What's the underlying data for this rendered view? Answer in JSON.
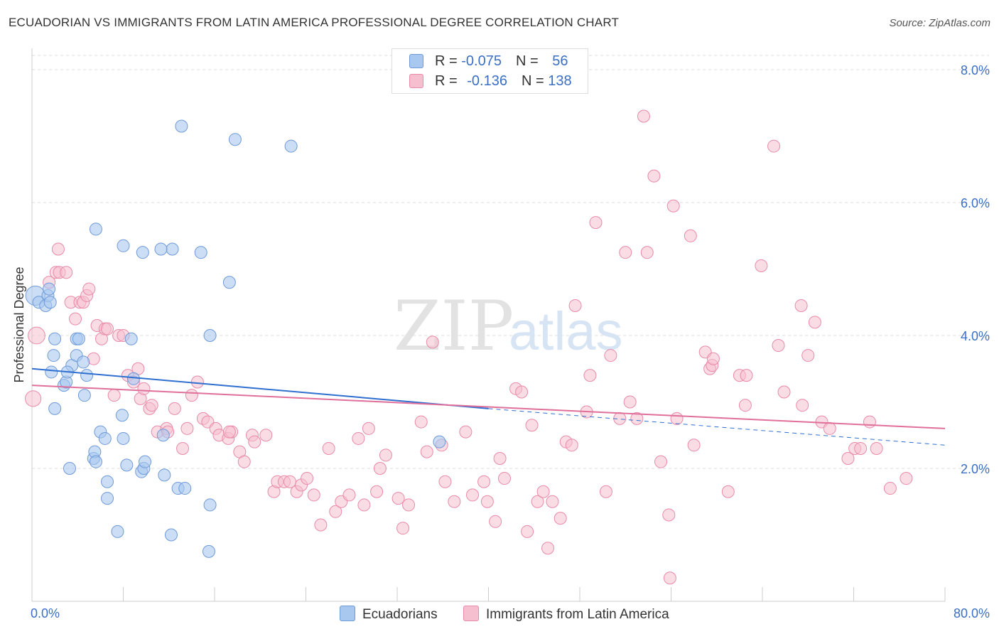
{
  "title": "ECUADORIAN VS IMMIGRANTS FROM LATIN AMERICA PROFESSIONAL DEGREE CORRELATION CHART",
  "source": "Source: ZipAtlas.com",
  "watermark": {
    "zip": "ZIP",
    "atlas": "atlas"
  },
  "legend_top": [
    {
      "r_label": "R = ",
      "r_value": "-0.075",
      "n_label": "N = ",
      "n_value": "56"
    },
    {
      "r_label": "R = ",
      "r_value": "-0.136",
      "n_label": "N = ",
      "n_value": "138"
    }
  ],
  "colors": {
    "blue_fill": "#a9c8f0",
    "blue_stroke": "#6f9ad8",
    "blue_line": "#2f6fd0",
    "pink_fill": "#f6bfd0",
    "pink_stroke": "#e88aa8",
    "pink_line": "#e0709a",
    "tick_label": "#3a6fc4",
    "grid": "#dddddd"
  },
  "chart_data": {
    "type": "scatter",
    "title": "ECUADORIAN VS IMMIGRANTS FROM LATIN AMERICA PROFESSIONAL DEGREE CORRELATION CHART",
    "xlabel": "",
    "ylabel": "Professional Degree",
    "xlim": [
      0,
      80
    ],
    "ylim": [
      0,
      8.3
    ],
    "x_tick_labels": [
      "0.0%",
      "80.0%"
    ],
    "y_ticks": [
      2,
      4,
      6,
      8
    ],
    "y_tick_labels": [
      "2.0%",
      "4.0%",
      "6.0%",
      "8.0%"
    ],
    "grid": true,
    "legend_position": "bottom",
    "series": [
      {
        "name": "Ecuadorians",
        "color": "#a9c8f0",
        "trend": {
          "x": [
            0,
            40
          ],
          "y": [
            3.5,
            2.9
          ],
          "dashed_x": [
            40,
            80
          ],
          "dashed_y": [
            2.9,
            2.35
          ]
        },
        "points": [
          [
            0.3,
            4.6,
            1.6
          ],
          [
            0.6,
            4.5,
            1
          ],
          [
            1.2,
            4.45,
            1
          ],
          [
            1.4,
            4.6,
            1
          ],
          [
            1.5,
            4.7,
            1
          ],
          [
            1.6,
            4.5,
            1
          ],
          [
            1.9,
            3.7,
            1
          ],
          [
            2.0,
            3.95,
            1
          ],
          [
            2.0,
            2.9,
            1
          ],
          [
            1.7,
            3.45,
            1
          ],
          [
            2.8,
            3.25,
            1
          ],
          [
            3.0,
            3.3,
            1
          ],
          [
            3.5,
            3.55,
            1
          ],
          [
            3.3,
            2.0,
            1
          ],
          [
            3.9,
            3.7,
            1
          ],
          [
            3.9,
            3.95,
            1
          ],
          [
            4.1,
            3.95,
            1
          ],
          [
            4.6,
            3.1,
            1
          ],
          [
            4.8,
            3.4,
            1
          ],
          [
            5.4,
            2.15,
            1
          ],
          [
            5.5,
            2.25,
            1
          ],
          [
            5.6,
            2.1,
            1
          ],
          [
            6.0,
            2.55,
            1
          ],
          [
            6.4,
            2.45,
            1
          ],
          [
            6.6,
            1.8,
            1
          ],
          [
            6.6,
            1.55,
            1
          ],
          [
            7.5,
            1.05,
            1
          ],
          [
            7.9,
            2.8,
            1
          ],
          [
            8.0,
            2.45,
            1
          ],
          [
            8.3,
            2.05,
            1
          ],
          [
            8.7,
            3.95,
            1
          ],
          [
            8.9,
            3.35,
            1
          ],
          [
            9.6,
            1.95,
            1
          ],
          [
            9.8,
            2.0,
            1
          ],
          [
            9.9,
            2.1,
            1
          ],
          [
            11.5,
            2.5,
            1
          ],
          [
            11.6,
            1.9,
            1
          ],
          [
            12.2,
            1.0,
            1
          ],
          [
            12.3,
            5.3,
            1
          ],
          [
            12.8,
            1.7,
            1
          ],
          [
            13.4,
            1.7,
            1
          ],
          [
            15.6,
            4.0,
            1
          ],
          [
            15.5,
            0.75,
            1
          ],
          [
            15.6,
            1.45,
            1
          ],
          [
            17.3,
            4.8,
            1
          ],
          [
            8.0,
            5.35,
            1
          ],
          [
            9.7,
            5.25,
            1
          ],
          [
            11.3,
            5.3,
            1
          ],
          [
            14.8,
            5.25,
            1
          ],
          [
            5.6,
            5.6,
            1
          ],
          [
            13.1,
            7.15,
            1
          ],
          [
            17.8,
            6.95,
            1
          ],
          [
            22.7,
            6.85,
            1
          ],
          [
            35.7,
            2.4,
            1
          ],
          [
            3.1,
            3.45,
            1
          ],
          [
            4.5,
            3.6,
            1
          ]
        ]
      },
      {
        "name": "Immigrants from Latin America",
        "color": "#f6bfd0",
        "trend": {
          "x": [
            0,
            80
          ],
          "y": [
            3.25,
            2.6
          ]
        },
        "points": [
          [
            0.1,
            3.05,
            1.3
          ],
          [
            0.4,
            4.0,
            1.4
          ],
          [
            1.5,
            4.8,
            1
          ],
          [
            2.1,
            4.95,
            1
          ],
          [
            2.3,
            5.3,
            1
          ],
          [
            2.4,
            4.95,
            1
          ],
          [
            3.0,
            4.95,
            1
          ],
          [
            3.4,
            4.5,
            1
          ],
          [
            3.8,
            4.25,
            1
          ],
          [
            4.2,
            4.5,
            1
          ],
          [
            4.5,
            4.5,
            1
          ],
          [
            4.8,
            4.6,
            1
          ],
          [
            5.0,
            4.7,
            1
          ],
          [
            5.4,
            3.65,
            1
          ],
          [
            5.7,
            4.15,
            1
          ],
          [
            6.1,
            3.95,
            1
          ],
          [
            6.4,
            4.1,
            1
          ],
          [
            6.6,
            4.1,
            1
          ],
          [
            7.2,
            3.1,
            1
          ],
          [
            7.6,
            4.0,
            1
          ],
          [
            8.0,
            4.0,
            1
          ],
          [
            8.4,
            3.4,
            1
          ],
          [
            8.9,
            3.3,
            1
          ],
          [
            9.3,
            3.5,
            1
          ],
          [
            9.5,
            3.05,
            1
          ],
          [
            9.8,
            3.2,
            1
          ],
          [
            10.3,
            2.9,
            1
          ],
          [
            10.5,
            2.95,
            1
          ],
          [
            11.0,
            2.55,
            1
          ],
          [
            11.8,
            2.6,
            1
          ],
          [
            11.9,
            2.55,
            1
          ],
          [
            12.5,
            2.9,
            1
          ],
          [
            13.2,
            2.3,
            1
          ],
          [
            13.6,
            2.6,
            1
          ],
          [
            14.0,
            3.1,
            1
          ],
          [
            14.5,
            3.3,
            1
          ],
          [
            15.0,
            2.75,
            1
          ],
          [
            15.4,
            2.7,
            1
          ],
          [
            16.1,
            2.6,
            1
          ],
          [
            16.4,
            2.5,
            1
          ],
          [
            17.2,
            2.45,
            1
          ],
          [
            17.5,
            2.55,
            1
          ],
          [
            18.2,
            2.25,
            1
          ],
          [
            18.6,
            2.1,
            1
          ],
          [
            19.3,
            2.5,
            1
          ],
          [
            19.5,
            2.4,
            1
          ],
          [
            20.5,
            2.5,
            1
          ],
          [
            21.2,
            1.65,
            1
          ],
          [
            21.5,
            1.8,
            1
          ],
          [
            22.1,
            1.8,
            1
          ],
          [
            22.6,
            1.8,
            1
          ],
          [
            23.2,
            1.65,
            1
          ],
          [
            23.6,
            1.75,
            1
          ],
          [
            24.1,
            1.85,
            1
          ],
          [
            24.7,
            1.6,
            1
          ],
          [
            25.3,
            1.15,
            1
          ],
          [
            26.0,
            2.3,
            1
          ],
          [
            26.6,
            1.35,
            1
          ],
          [
            27.1,
            1.5,
            1
          ],
          [
            27.8,
            1.6,
            1
          ],
          [
            28.6,
            2.45,
            1
          ],
          [
            29.1,
            1.45,
            1
          ],
          [
            29.5,
            2.6,
            1
          ],
          [
            30.2,
            1.65,
            1
          ],
          [
            30.5,
            2.0,
            1
          ],
          [
            31.0,
            2.2,
            1
          ],
          [
            32.1,
            1.55,
            1
          ],
          [
            32.5,
            1.1,
            1
          ],
          [
            33.0,
            1.45,
            1
          ],
          [
            34.1,
            2.7,
            1
          ],
          [
            34.6,
            2.25,
            1
          ],
          [
            35.1,
            3.9,
            1
          ],
          [
            35.9,
            2.35,
            1
          ],
          [
            36.2,
            1.8,
            1
          ],
          [
            37.0,
            1.5,
            1
          ],
          [
            38.0,
            2.55,
            1
          ],
          [
            38.6,
            1.6,
            1
          ],
          [
            39.6,
            1.8,
            1
          ],
          [
            39.9,
            1.5,
            1
          ],
          [
            40.6,
            1.2,
            1
          ],
          [
            41.0,
            2.15,
            1
          ],
          [
            41.4,
            1.85,
            1
          ],
          [
            42.4,
            3.2,
            1
          ],
          [
            42.9,
            3.15,
            1
          ],
          [
            43.4,
            1.05,
            1
          ],
          [
            43.8,
            2.65,
            1
          ],
          [
            44.3,
            1.5,
            1
          ],
          [
            44.8,
            1.65,
            1
          ],
          [
            45.2,
            0.8,
            1
          ],
          [
            45.6,
            1.5,
            1
          ],
          [
            46.3,
            1.25,
            1
          ],
          [
            46.8,
            2.4,
            1
          ],
          [
            47.3,
            2.35,
            1
          ],
          [
            47.6,
            4.45,
            1
          ],
          [
            48.6,
            2.85,
            1
          ],
          [
            48.9,
            3.4,
            1
          ],
          [
            49.4,
            5.7,
            1
          ],
          [
            50.3,
            1.65,
            1
          ],
          [
            50.7,
            3.7,
            1
          ],
          [
            51.5,
            2.75,
            1
          ],
          [
            52.0,
            5.25,
            1
          ],
          [
            52.4,
            3.0,
            1
          ],
          [
            53.0,
            2.75,
            1
          ],
          [
            53.6,
            7.3,
            1
          ],
          [
            53.9,
            5.25,
            1
          ],
          [
            54.5,
            6.4,
            1
          ],
          [
            55.1,
            2.1,
            1
          ],
          [
            55.8,
            1.3,
            1
          ],
          [
            56.2,
            5.95,
            1
          ],
          [
            56.5,
            2.75,
            1
          ],
          [
            57.7,
            5.5,
            1
          ],
          [
            58.0,
            2.35,
            1
          ],
          [
            59.0,
            3.75,
            1
          ],
          [
            59.4,
            3.5,
            1
          ],
          [
            59.6,
            3.55,
            1
          ],
          [
            59.7,
            3.65,
            1
          ],
          [
            61.0,
            1.65,
            1
          ],
          [
            62.0,
            3.4,
            1
          ],
          [
            62.5,
            2.95,
            1
          ],
          [
            63.9,
            5.05,
            1
          ],
          [
            65.0,
            6.85,
            1
          ],
          [
            65.4,
            3.85,
            1
          ],
          [
            65.9,
            3.15,
            1
          ],
          [
            67.4,
            4.45,
            1
          ],
          [
            67.5,
            2.95,
            1
          ],
          [
            68.0,
            3.7,
            1
          ],
          [
            68.6,
            4.2,
            1
          ],
          [
            69.2,
            2.7,
            1
          ],
          [
            69.9,
            2.6,
            1
          ],
          [
            71.5,
            2.15,
            1
          ],
          [
            72.1,
            2.3,
            1
          ],
          [
            72.6,
            2.3,
            1
          ],
          [
            73.4,
            2.7,
            1
          ],
          [
            74.0,
            2.3,
            1
          ],
          [
            75.2,
            1.7,
            1
          ],
          [
            76.6,
            1.85,
            1
          ],
          [
            62.6,
            3.4,
            1
          ],
          [
            55.9,
            0.35,
            1
          ],
          [
            17.3,
            2.55,
            1
          ]
        ]
      }
    ]
  },
  "bottom_legend": [
    {
      "label": "Ecuadorians",
      "color": "#a9c8f0",
      "stroke": "#6f9ad8"
    },
    {
      "label": "Immigrants from Latin America",
      "color": "#f6bfd0",
      "stroke": "#e88aa8"
    }
  ]
}
